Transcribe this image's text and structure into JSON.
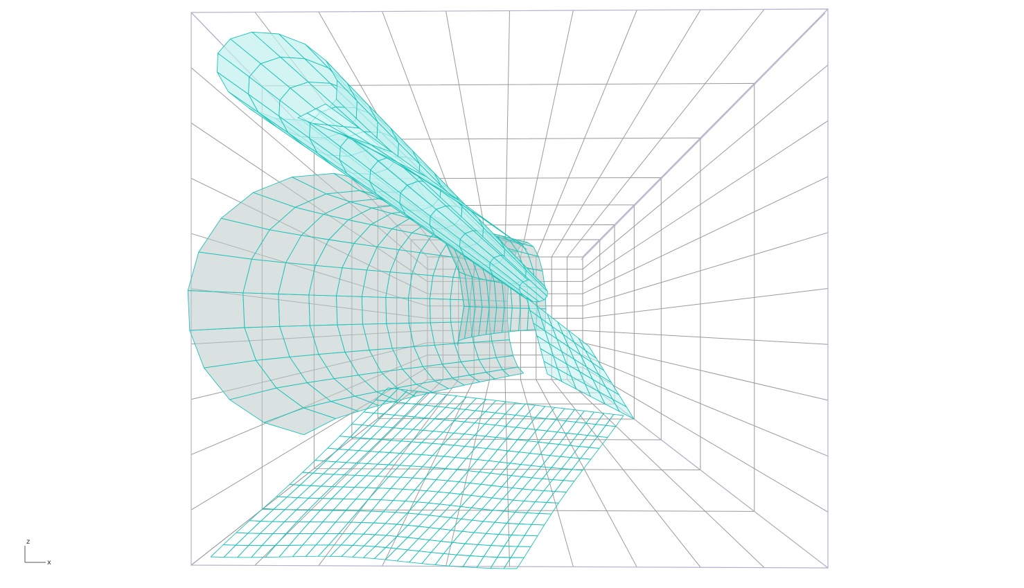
{
  "viewport": {
    "view": "perspective-interior",
    "background": "#ffffff",
    "colors": {
      "grid": "#9a9a9a",
      "frame": "#b5b0cc",
      "mesh_stroke": "#1cc2b8",
      "mesh_fill": "#bff0ee",
      "mesh_fill_light": "#dffbfa",
      "mesh_fill_shadow": "#b9c9c8"
    }
  },
  "axis_indicator": {
    "vertical_label": "z",
    "horizontal_label": "x",
    "line_color": "#555555"
  }
}
